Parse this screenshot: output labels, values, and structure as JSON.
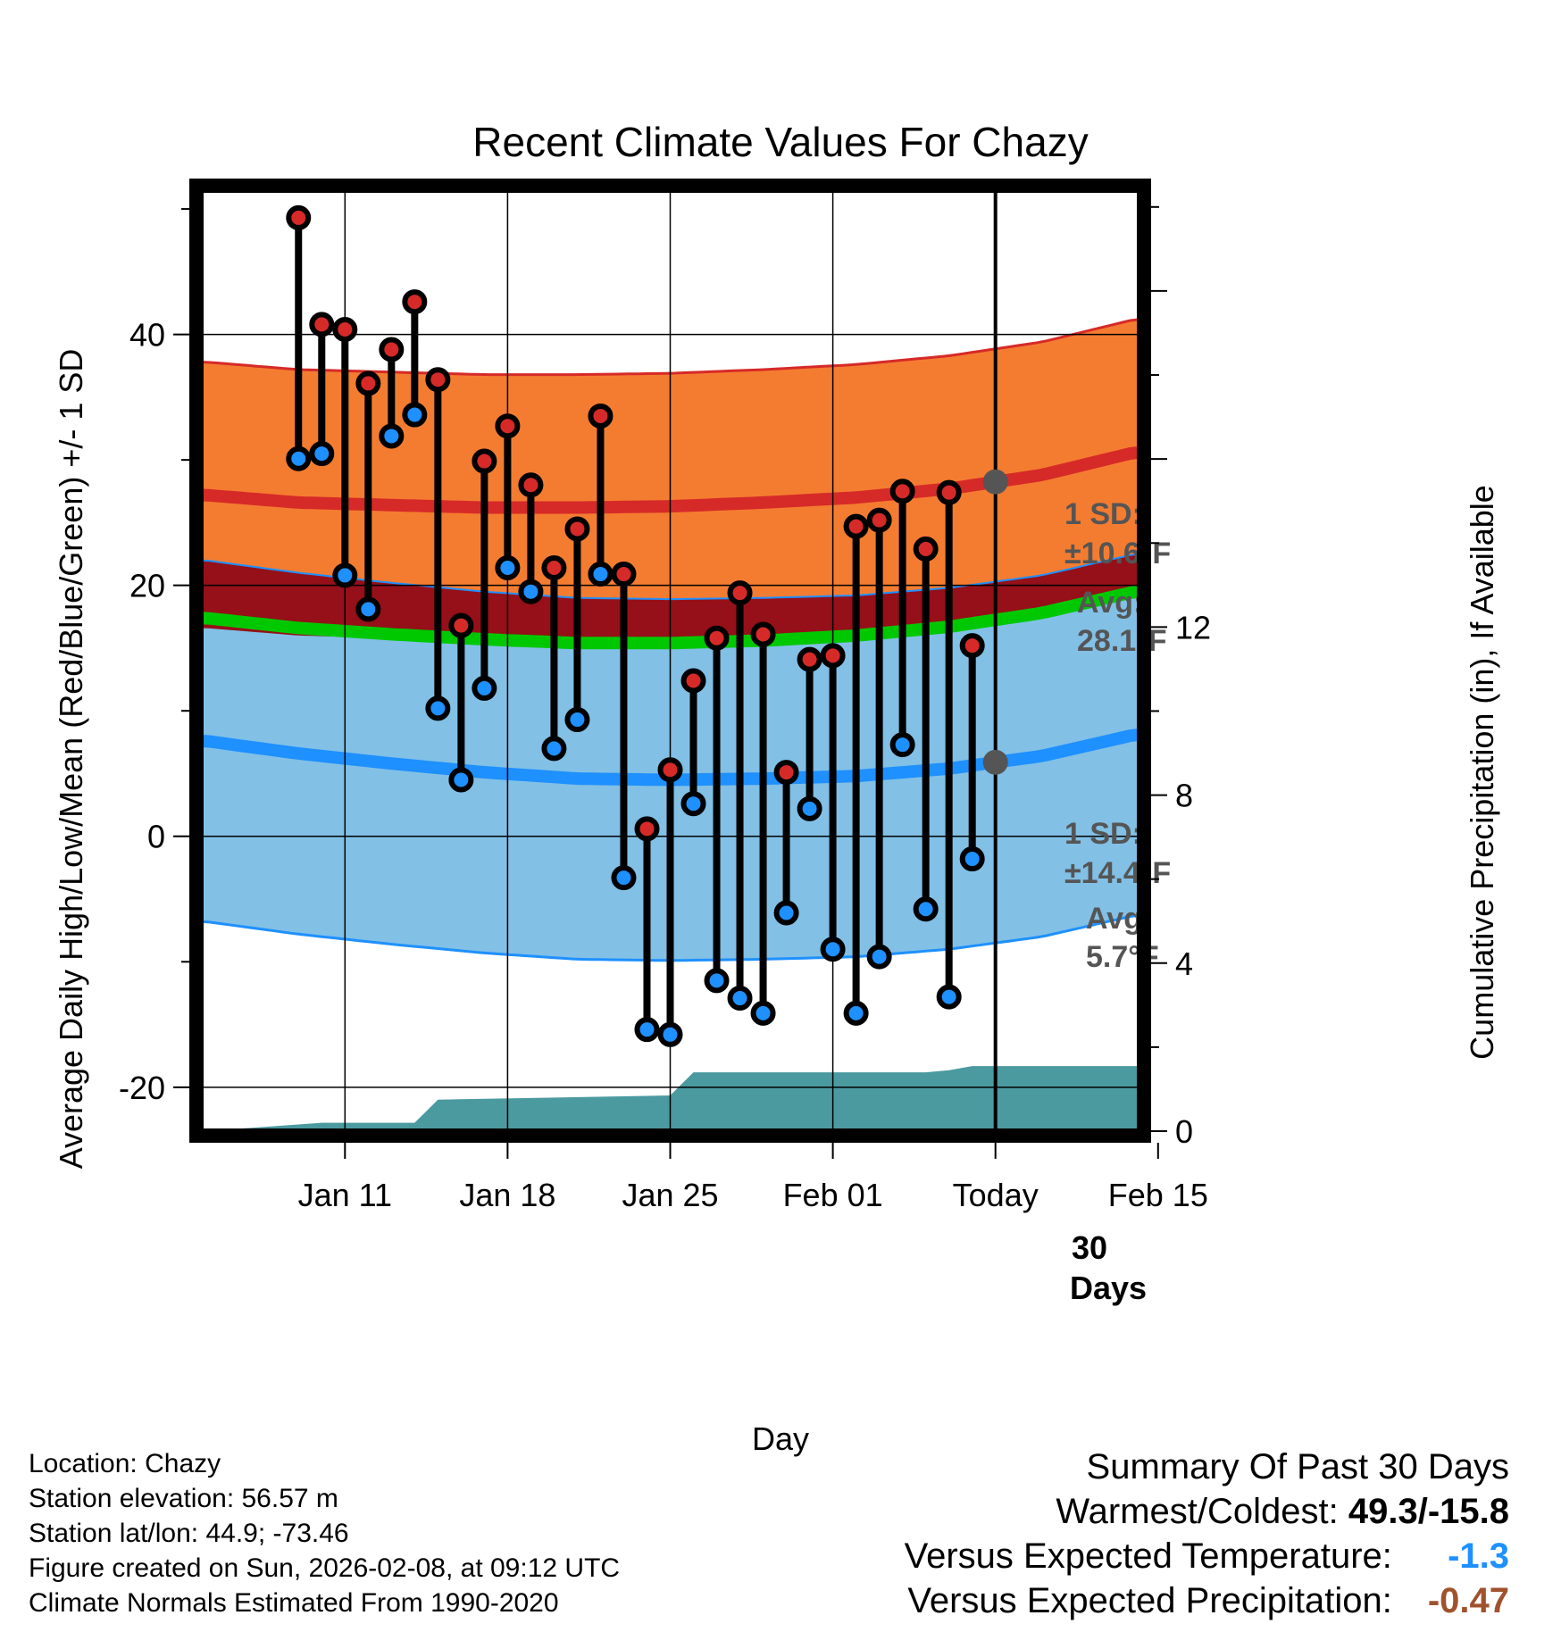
{
  "chart_data": {
    "type": "line",
    "title": "Recent Climate Values For Chazy",
    "xlabel": "Day",
    "ylabel": "Average Daily High/Low/Mean (Red/Blue/Green) +/- 1 SD",
    "y2label": "Cumulative Precipitation (in), If Available",
    "ylim": [
      -23.5,
      51.5
    ],
    "y2lim": [
      0,
      22.4
    ],
    "xlim": [
      -6.2,
      34.2
    ],
    "x_ticks": [
      {
        "day": 0,
        "label": "Jan 11"
      },
      {
        "day": 7,
        "label": "Jan 18"
      },
      {
        "day": 14,
        "label": "Jan 25"
      },
      {
        "day": 21,
        "label": "Feb 01"
      },
      {
        "day": 28,
        "label": "Today"
      },
      {
        "day": 35,
        "label": "Feb 15"
      }
    ],
    "y_ticks": [
      -20,
      0,
      20,
      40
    ],
    "y2_ticks": [
      0,
      4,
      8,
      12
    ],
    "today_day": 28,
    "observed": {
      "days": [
        -2,
        -1,
        0,
        1,
        2,
        3,
        4,
        5,
        6,
        7,
        8,
        9,
        10,
        11,
        12,
        13,
        14,
        15,
        16,
        17,
        18,
        19,
        20,
        21,
        22,
        23,
        24,
        25,
        26,
        27
      ],
      "highs": [
        49.3,
        40.8,
        40.4,
        36.1,
        38.8,
        42.6,
        36.4,
        16.8,
        29.9,
        32.7,
        28.0,
        21.4,
        24.5,
        33.5,
        20.9,
        0.6,
        5.3,
        12.4,
        15.8,
        19.4,
        16.1,
        5.1,
        14.1,
        14.4,
        24.7,
        25.2,
        27.5,
        22.9,
        27.4,
        15.2
      ],
      "lows": [
        30.1,
        30.5,
        20.8,
        18.1,
        31.9,
        33.6,
        10.2,
        4.5,
        11.8,
        21.4,
        19.5,
        7.0,
        9.3,
        20.9,
        -3.3,
        -15.4,
        -15.8,
        2.6,
        -11.5,
        -12.9,
        -14.1,
        -6.1,
        2.2,
        -9.0,
        -14.1,
        -9.6,
        7.3,
        -5.8,
        -12.8,
        -1.8
      ]
    },
    "normals": {
      "days": [
        -6,
        -2,
        2,
        6,
        10,
        14,
        18,
        22,
        26,
        30,
        34
      ],
      "high_mean": [
        27.2,
        26.6,
        26.4,
        26.2,
        26.2,
        26.3,
        26.6,
        27.0,
        27.7,
        28.8,
        30.6
      ],
      "low_mean": [
        7.6,
        6.6,
        5.8,
        5.1,
        4.6,
        4.5,
        4.6,
        4.8,
        5.4,
        6.4,
        8.1
      ],
      "avg_mean": [
        17.4,
        16.6,
        16.1,
        15.7,
        15.4,
        15.4,
        15.6,
        16.0,
        16.7,
        17.8,
        19.5
      ],
      "high_sd": 10.6,
      "low_sd": 14.4
    },
    "precip": {
      "days": [
        -6,
        -1,
        3,
        4,
        14,
        15,
        25,
        26,
        27,
        34
      ],
      "cum": [
        0.0,
        0.2,
        0.2,
        0.75,
        0.85,
        1.4,
        1.4,
        1.45,
        1.55,
        1.55
      ]
    },
    "annotations": {
      "high_sd": "1 SD:",
      "high_sd_value": "±10.6°F",
      "high_avg": "Avg:",
      "high_avg_value": "28.1°F",
      "low_sd": "1 SD:",
      "low_sd_value": "±14.4°F",
      "low_avg": "Avg:",
      "low_avg_value": "5.7°F",
      "days_number": "30",
      "days_word": "Days"
    }
  },
  "colors": {
    "high_band": "#f47c30",
    "high_line": "#d62a28",
    "low_band": "#82c0e6",
    "low_line": "#1e90ff",
    "overlap": "#951018",
    "mean_line": "#00c800",
    "precip": "#4a9aa0",
    "high_dot": "#d62a28",
    "low_dot": "#1e90ff",
    "annotation": "#555555",
    "below_normal_temp": "#1e90ff",
    "below_normal_precip": "#a0522d"
  },
  "footer": {
    "location": "Location: Chazy",
    "elevation": "Station elevation: 56.57 m",
    "latlon": "Station lat/lon: 44.9; -73.46",
    "created": "Figure created on Sun, 2026-02-08, at 09:12 UTC",
    "normals": "Climate Normals Estimated From 1990-2020"
  },
  "summary": {
    "title": "Summary Of Past 30 Days",
    "warmest_coldest_label": "Warmest/Coldest:",
    "warmest_coldest_value": "49.3/-15.8",
    "temp_label": "Versus Expected Temperature:",
    "temp_value": "-1.3",
    "precip_label": "Versus Expected Precipitation:",
    "precip_value": "-0.47"
  }
}
